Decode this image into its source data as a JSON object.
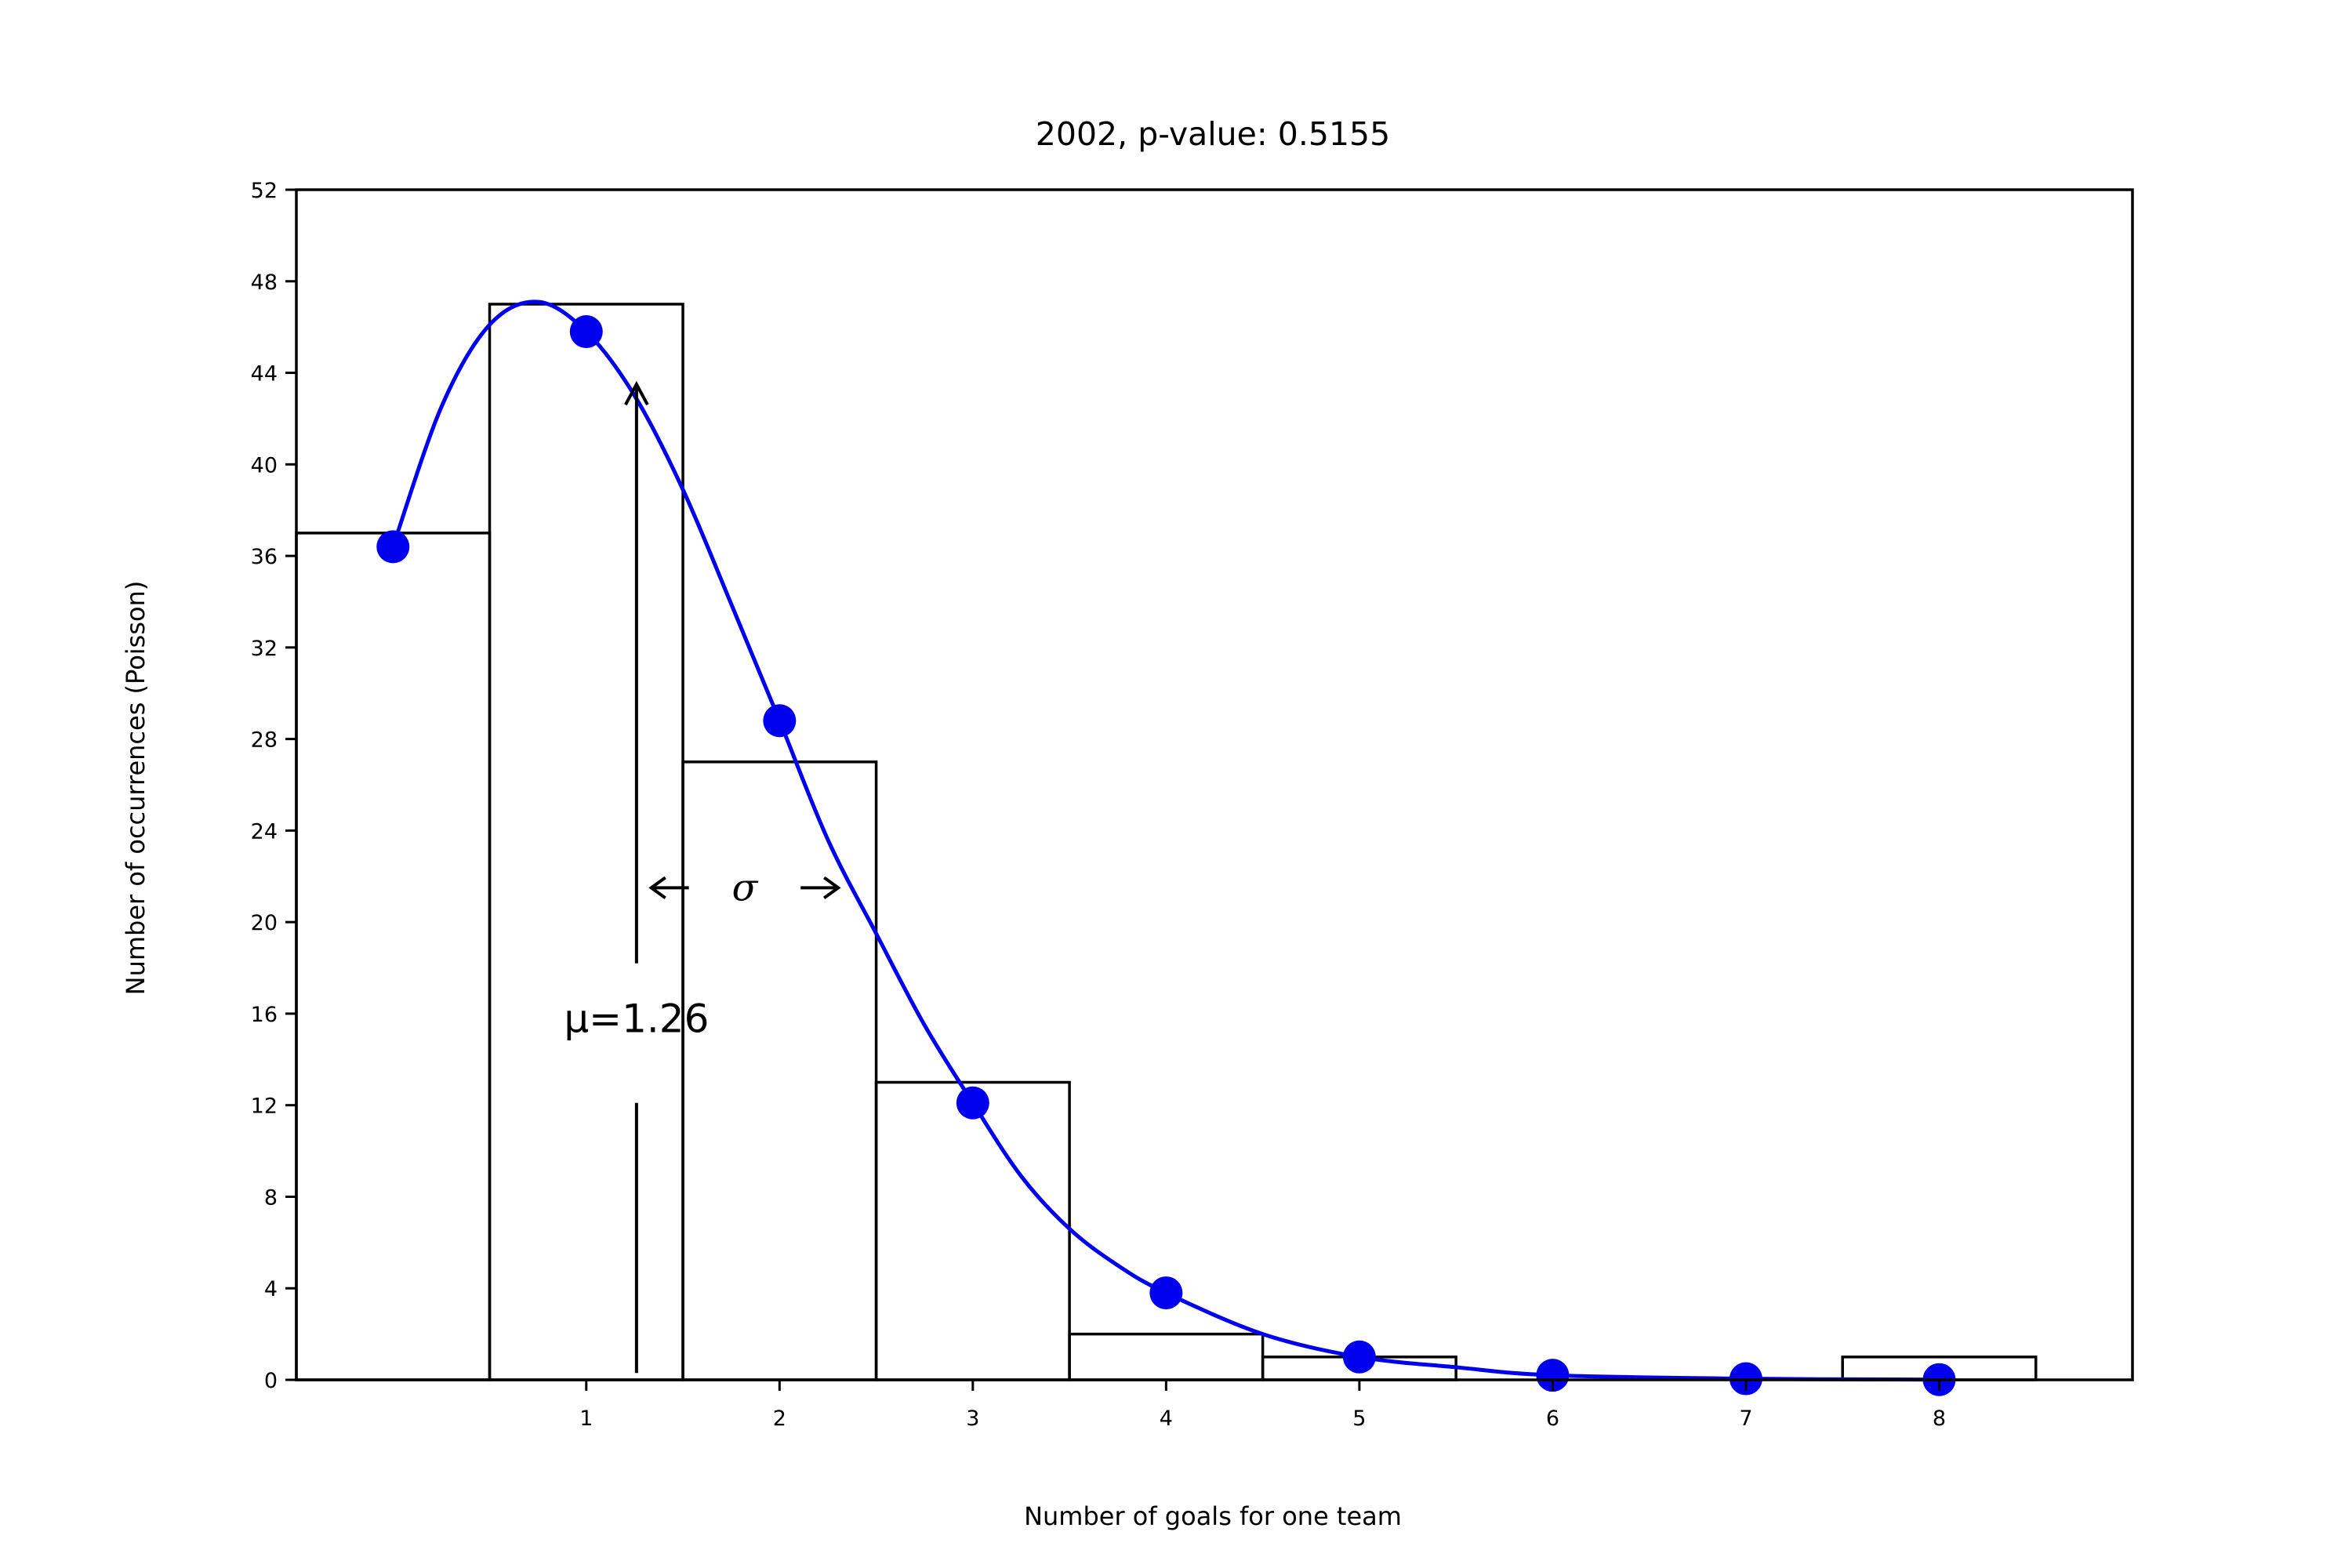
{
  "chart_data": {
    "type": "bar",
    "title": "2002, p-value: 0.5155",
    "xlabel": "Number of goals for one team",
    "ylabel": "Number of occurrences (Poisson)",
    "xlim": [
      -0.5,
      9
    ],
    "ylim": [
      0,
      52
    ],
    "x_ticks": [
      1,
      2,
      3,
      4,
      5,
      6,
      7,
      8
    ],
    "y_ticks": [
      0,
      4,
      8,
      12,
      16,
      20,
      24,
      28,
      32,
      36,
      40,
      44,
      48,
      52
    ],
    "grid": false,
    "histogram": {
      "name": "",
      "bins": [
        0,
        1,
        2,
        3,
        4,
        5,
        6,
        7,
        8
      ],
      "values": [
        37,
        47,
        27,
        13,
        2,
        1,
        0,
        0,
        1
      ],
      "color": "#000000",
      "style": "step"
    },
    "expected_points": {
      "name": "",
      "x": [
        0,
        1,
        2,
        3,
        4,
        5,
        6,
        7,
        8
      ],
      "y": [
        36.4,
        45.8,
        28.8,
        12.1,
        3.8,
        1.0,
        0.2,
        0.05,
        0.01
      ],
      "color": "#0000ee"
    },
    "fit_curve": {
      "name": "",
      "type": "line",
      "color": "#0000ee",
      "x": [
        0,
        0.25,
        0.5,
        0.75,
        1.0,
        1.25,
        1.5,
        1.75,
        2.0,
        2.25,
        2.5,
        2.75,
        3.0,
        3.25,
        3.5,
        3.75,
        4.0,
        4.5,
        5.0,
        5.5,
        6.0,
        7.0,
        8.0
      ],
      "y": [
        36.4,
        42.5,
        46.1,
        47.1,
        45.8,
        43.0,
        38.9,
        33.9,
        28.8,
        23.6,
        19.5,
        15.5,
        12.1,
        8.9,
        6.6,
        5.0,
        3.8,
        2.0,
        1.0,
        0.55,
        0.2,
        0.05,
        0.01
      ]
    },
    "mean_line": {
      "x": 1.26,
      "y_top": 43.5,
      "label": "μ=1.26",
      "label_y": 15.2
    },
    "sigma_annotation": {
      "label": "σ",
      "y": 21.5,
      "x_left": 1.32,
      "x_right": 2.32
    }
  }
}
